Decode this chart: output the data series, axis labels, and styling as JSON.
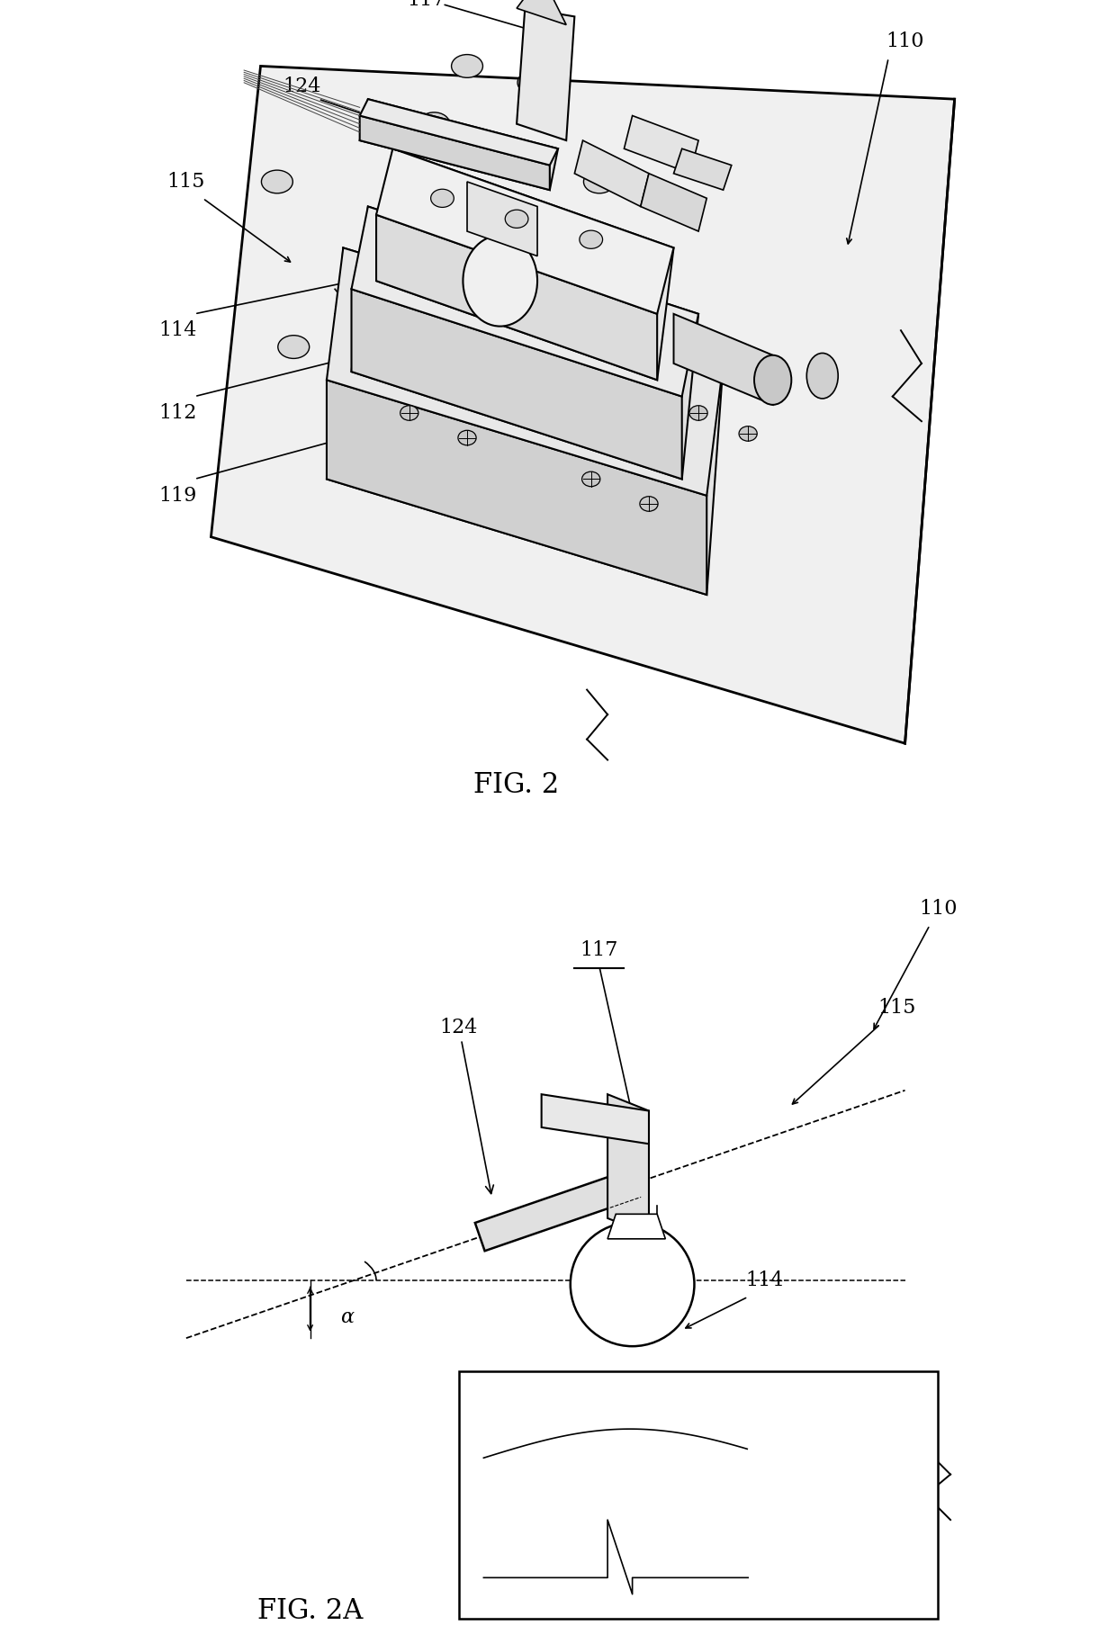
{
  "fig_width": 12.4,
  "fig_height": 18.36,
  "bg_color": "#ffffff",
  "line_color": "#000000",
  "fig2_label": "FIG. 2",
  "fig2a_label": "FIG. 2A",
  "font_size_label": 16,
  "font_size_fig": 22,
  "alpha_label": "α"
}
